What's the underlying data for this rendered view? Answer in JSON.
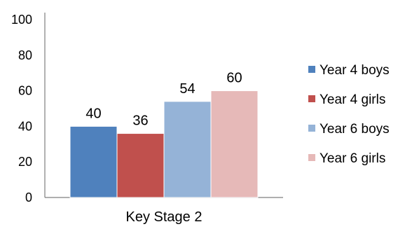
{
  "chart_data": {
    "type": "bar",
    "title": "",
    "xlabel": "",
    "ylabel": "",
    "categories": [
      "Key Stage 2"
    ],
    "series": [
      {
        "name": "Year 4 boys",
        "values": [
          40
        ],
        "color": "#4f81bd"
      },
      {
        "name": "Year 4 girls",
        "values": [
          36
        ],
        "color": "#c0504d"
      },
      {
        "name": "Year 6 boys",
        "values": [
          54
        ],
        "color": "#95b3d7"
      },
      {
        "name": "Year 6 girls",
        "values": [
          60
        ],
        "color": "#e6b9b8"
      }
    ],
    "ylim": [
      0,
      100
    ],
    "yticks": [
      0,
      20,
      40,
      60,
      80,
      100
    ],
    "data_labels": true,
    "grid": false,
    "legend_position": "right"
  }
}
